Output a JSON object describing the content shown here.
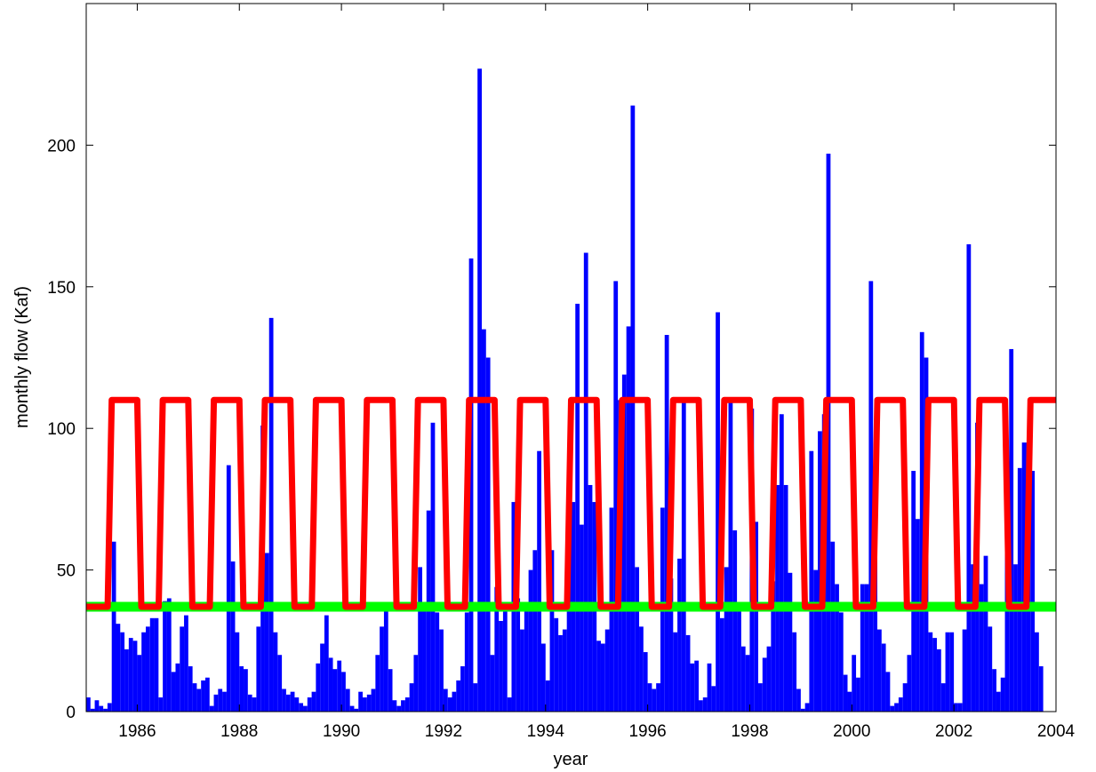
{
  "chart_data": {
    "type": "bar",
    "xlabel": "year",
    "ylabel": "monthly flow (Kaf)",
    "xlim": [
      1985,
      2004
    ],
    "ylim": [
      0,
      250
    ],
    "xticks": [
      1986,
      1988,
      1990,
      1992,
      1994,
      1996,
      1998,
      2000,
      2002,
      2004
    ],
    "yticks": [
      0,
      50,
      100,
      150,
      200
    ],
    "grid": false,
    "legend": "none",
    "colors": {
      "bars": "#0000ff",
      "seasonal_line": "#ff0000",
      "constant_line": "#00ff00"
    },
    "start_year": 1985.0,
    "bar_step_years": 0.08333,
    "monthly_flow": [
      5,
      1,
      4,
      2,
      1,
      3,
      60,
      31,
      28,
      22,
      26,
      25,
      20,
      28,
      30,
      33,
      33,
      5,
      39,
      40,
      14,
      17,
      30,
      34,
      16,
      10,
      8,
      11,
      12,
      2,
      6,
      8,
      7,
      87,
      53,
      28,
      16,
      15,
      6,
      5,
      30,
      101,
      56,
      139,
      28,
      20,
      8,
      6,
      7,
      5,
      3,
      2,
      5,
      7,
      17,
      24,
      34,
      19,
      15,
      18,
      14,
      8,
      2,
      1,
      7,
      5,
      6,
      8,
      20,
      30,
      36,
      15,
      4,
      2,
      4,
      5,
      10,
      20,
      51,
      36,
      71,
      102,
      35,
      29,
      8,
      5,
      7,
      11,
      16,
      35,
      160,
      10,
      227,
      135,
      125,
      20,
      44,
      32,
      36,
      5,
      74,
      40,
      29,
      36,
      50,
      57,
      92,
      24,
      11,
      57,
      33,
      27,
      29,
      60,
      74,
      144,
      66,
      162,
      80,
      74,
      25,
      24,
      29,
      72,
      152,
      110,
      119,
      136,
      214,
      51,
      30,
      21,
      10,
      8,
      10,
      72,
      133,
      47,
      28,
      54,
      109,
      27,
      17,
      18,
      4,
      5,
      17,
      9,
      141,
      33,
      51,
      110,
      64,
      37,
      23,
      20,
      107,
      67,
      10,
      19,
      23,
      46,
      80,
      105,
      80,
      49,
      28,
      8,
      1,
      3,
      92,
      50,
      99,
      105,
      197,
      60,
      45,
      35,
      13,
      7,
      20,
      12,
      45,
      45,
      152,
      67,
      29,
      24,
      14,
      2,
      3,
      5,
      10,
      20,
      85,
      68,
      134,
      125,
      28,
      26,
      22,
      10,
      28,
      28,
      3,
      3,
      29,
      165,
      52,
      102,
      45,
      55,
      30,
      15,
      7,
      12,
      58,
      128,
      52,
      86,
      95,
      95,
      85,
      28,
      16
    ],
    "seasonal_line": {
      "low": 37,
      "high": 110,
      "high_season_start_offset": 0.42,
      "high_season_end_offset": 0.08,
      "ramp_years": 0.08
    },
    "constant_line": {
      "value": 37
    }
  }
}
